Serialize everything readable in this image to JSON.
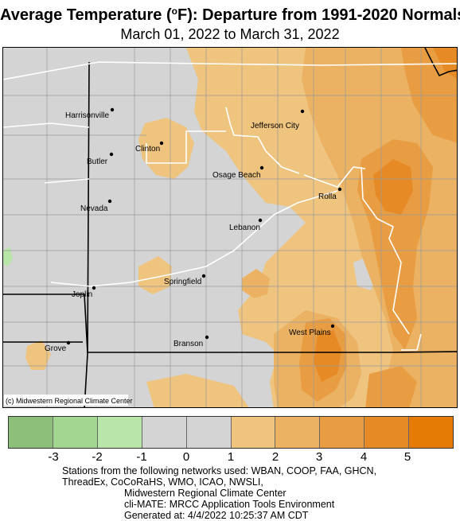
{
  "title": {
    "prefix": "Average Temperature (",
    "degree": "o",
    "suffix": "F): Departure from 1991-2020 Normals"
  },
  "subtitle": "March 01, 2022 to March 31, 2022",
  "map": {
    "copyright": "(c) Midwestern Regional Climate Center",
    "cities": [
      {
        "name": "Harrisonville"
      },
      {
        "name": "Clinton"
      },
      {
        "name": "Jefferson City"
      },
      {
        "name": "Butler"
      },
      {
        "name": "Osage Beach"
      },
      {
        "name": "Rolla"
      },
      {
        "name": "Nevada"
      },
      {
        "name": "Lebanon"
      },
      {
        "name": "Springfield"
      },
      {
        "name": "Joplin"
      },
      {
        "name": "West Plains"
      },
      {
        "name": "Branson"
      },
      {
        "name": "Grove"
      }
    ]
  },
  "legend": {
    "colors": [
      "#8dbf7a",
      "#a3d690",
      "#b8e6a8",
      "#d4d4d4",
      "#d4d4d4",
      "#eec47e",
      "#ebb263",
      "#e89d43",
      "#e68a25",
      "#e57a05"
    ],
    "ticks": [
      "-3",
      "-2",
      "-1",
      "0",
      "1",
      "2",
      "3",
      "4",
      "5"
    ]
  },
  "footer": {
    "line1": "Stations from the following networks used: WBAN, COOP, FAA, GHCN,",
    "line2": "ThreadEx, CoCoRaHS, WMO, ICAO, NWSLI,",
    "line3": "Midwestern Regional Climate Center",
    "line4": "cli-MATE: MRCC Application Tools Environment",
    "line5": "Generated at: 4/4/2022 10:25:37 AM CDT"
  }
}
